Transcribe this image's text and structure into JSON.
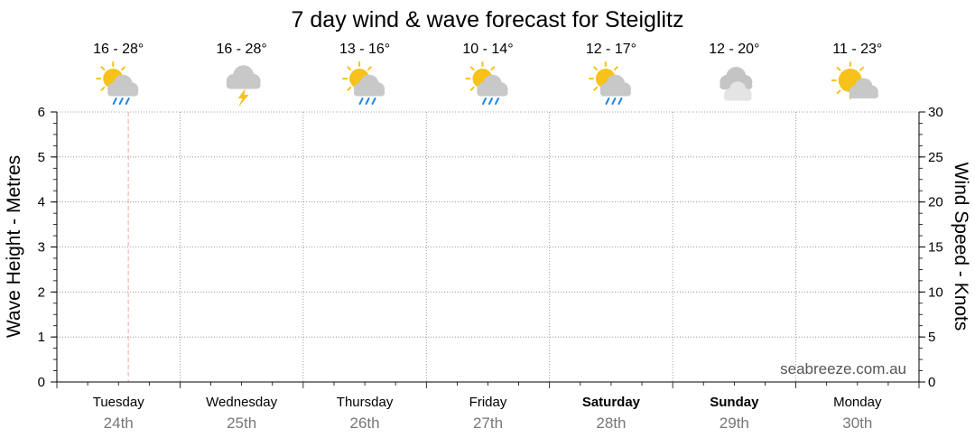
{
  "chart_data": {
    "type": "line",
    "title": "7 day wind & wave forecast for Steiglitz",
    "ylabel_left": "Wave Height - Metres",
    "ylabel_right": "Wind Speed - Knots",
    "ylim_left": [
      0,
      6
    ],
    "ylim_right": [
      0,
      30
    ],
    "yticks_left": [
      "0",
      "1",
      "2",
      "3",
      "4",
      "5",
      "6"
    ],
    "yticks_right": [
      "0",
      "5",
      "10",
      "15",
      "20",
      "25",
      "30"
    ],
    "grid": true,
    "current_time_marker": "Tuesday 24th",
    "watermark": "seabreeze.com.au",
    "days": [
      {
        "day": "Tuesday",
        "date": "24th",
        "temp": "16 - 28°",
        "icon": "sun-cloud-rain-icon",
        "bold": false
      },
      {
        "day": "Wednesday",
        "date": "25th",
        "temp": "16 - 28°",
        "icon": "thunderstorm-icon",
        "bold": false
      },
      {
        "day": "Thursday",
        "date": "26th",
        "temp": "13 - 16°",
        "icon": "sun-cloud-rain-icon",
        "bold": false
      },
      {
        "day": "Friday",
        "date": "27th",
        "temp": "10 - 14°",
        "icon": "sun-cloud-rain-icon",
        "bold": false
      },
      {
        "day": "Saturday",
        "date": "28th",
        "temp": "12 - 17°",
        "icon": "sun-cloud-rain-icon",
        "bold": true
      },
      {
        "day": "Sunday",
        "date": "29th",
        "temp": "12 - 20°",
        "icon": "cloudy-icon",
        "bold": true
      },
      {
        "day": "Monday",
        "date": "30th",
        "temp": "11 - 23°",
        "icon": "partly-cloudy-icon",
        "bold": false
      }
    ],
    "series": []
  },
  "colors": {
    "grid": "#888888",
    "axis": "#000000",
    "marker": "#f4a6a6",
    "date_text": "#777777",
    "watermark": "#555555",
    "sun": "#f7c21a",
    "cloud": "#c8c8c8",
    "rain": "#1e88e5",
    "lightning": "#f7c21a"
  }
}
